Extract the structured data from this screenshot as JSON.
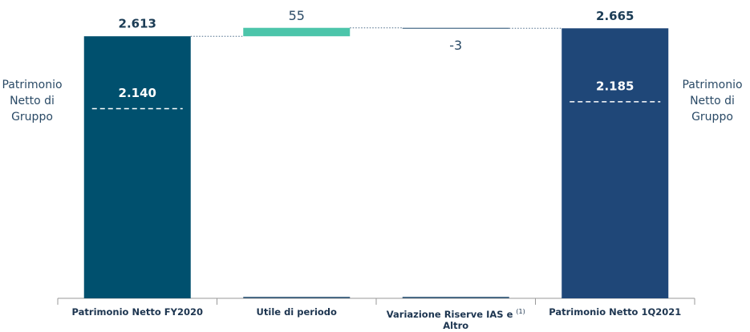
{
  "chart_data": {
    "type": "waterfall",
    "categories": [
      "Patrimonio Netto FY2020",
      "Utile di periodo",
      "Variazione Riserve IAS e Altro",
      "Patrimonio Netto 1Q2021"
    ],
    "category_notes": [
      null,
      null,
      "(1)",
      null
    ],
    "kinds": [
      "total",
      "delta",
      "delta",
      "total"
    ],
    "values": [
      2613,
      55,
      -3,
      2665
    ],
    "value_labels": [
      "2.613",
      "55",
      "-3",
      "2.665"
    ],
    "colors": [
      "#00506e",
      "#4cc5aa",
      "#1f4a6e",
      "#1f4778"
    ],
    "group_values": [
      2140,
      null,
      null,
      2185
    ],
    "group_value_labels": [
      "2.140",
      null,
      null,
      "2.185"
    ],
    "group_label": "Patrimonio Netto di Gruppo",
    "ylim": [
      900,
      2850
    ]
  }
}
